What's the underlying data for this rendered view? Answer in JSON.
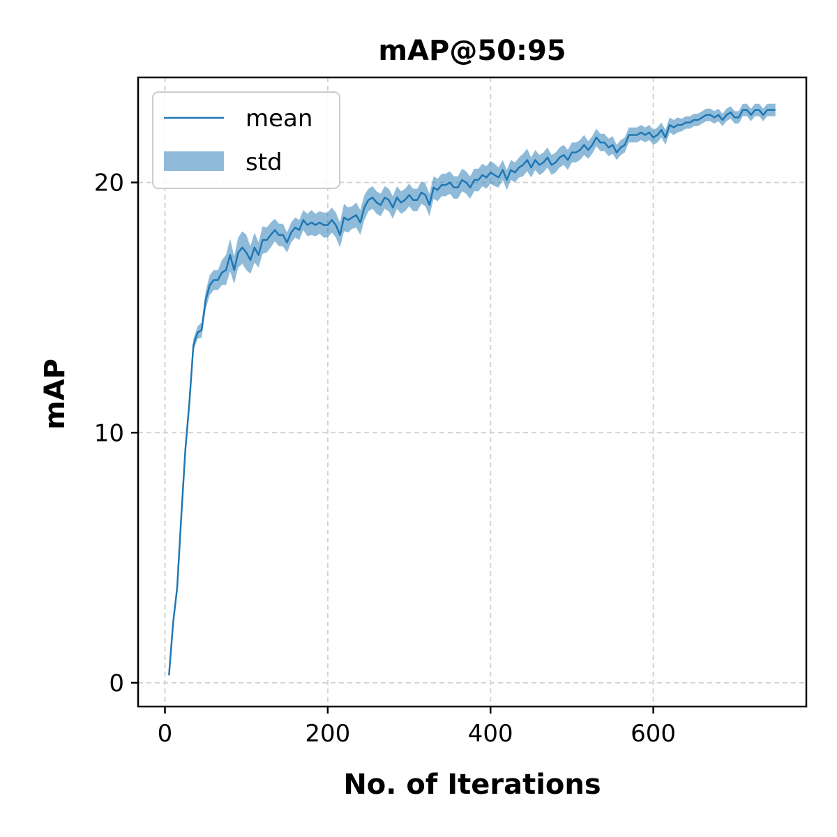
{
  "chart_data": {
    "type": "line",
    "title": "mAP@50:95",
    "xlabel": "No. of Iterations",
    "ylabel": "mAP",
    "xlim": [
      -33,
      788
    ],
    "ylim": [
      -0.95,
      24.2
    ],
    "xticks": [
      0,
      200,
      400,
      600
    ],
    "yticks": [
      0,
      10,
      20
    ],
    "grid": true,
    "legend_position": "top-left",
    "colors": {
      "line": "#1f77b4",
      "band": "#1f77b4"
    },
    "series": [
      {
        "name": "mean",
        "x": [
          5,
          10,
          15,
          20,
          25,
          30,
          35,
          40,
          45,
          50,
          55,
          60,
          65,
          70,
          75,
          80,
          85,
          90,
          95,
          100,
          105,
          110,
          115,
          120,
          125,
          130,
          135,
          140,
          145,
          150,
          155,
          160,
          165,
          170,
          175,
          180,
          185,
          190,
          195,
          200,
          205,
          210,
          215,
          220,
          225,
          230,
          235,
          240,
          245,
          250,
          255,
          260,
          265,
          270,
          275,
          280,
          285,
          290,
          295,
          300,
          305,
          310,
          315,
          320,
          325,
          330,
          335,
          340,
          345,
          350,
          355,
          360,
          365,
          370,
          375,
          380,
          385,
          390,
          395,
          400,
          405,
          410,
          415,
          420,
          425,
          430,
          435,
          440,
          445,
          450,
          455,
          460,
          465,
          470,
          475,
          480,
          485,
          490,
          495,
          500,
          505,
          510,
          515,
          520,
          525,
          530,
          535,
          540,
          545,
          550,
          555,
          560,
          565,
          570,
          575,
          580,
          585,
          590,
          595,
          600,
          605,
          610,
          615,
          620,
          625,
          630,
          635,
          640,
          645,
          650,
          655,
          660,
          665,
          670,
          675,
          680,
          685,
          690,
          695,
          700,
          705,
          710,
          715,
          720,
          725,
          730,
          735,
          740,
          745,
          750
        ],
        "y": [
          0.3,
          2.4,
          3.8,
          6.6,
          9.3,
          11.2,
          13.5,
          14.0,
          14.1,
          15.3,
          15.9,
          16.1,
          16.1,
          16.4,
          16.5,
          17.1,
          16.5,
          17.2,
          17.4,
          17.2,
          16.9,
          17.4,
          17.1,
          17.7,
          17.7,
          17.9,
          18.1,
          17.9,
          17.9,
          17.6,
          18.0,
          18.2,
          18.1,
          18.5,
          18.3,
          18.4,
          18.3,
          18.4,
          18.3,
          18.3,
          18.5,
          18.3,
          17.9,
          18.6,
          18.5,
          18.6,
          18.7,
          18.4,
          19.0,
          19.3,
          19.4,
          19.2,
          19.1,
          19.4,
          19.3,
          19.0,
          19.4,
          19.2,
          19.3,
          19.5,
          19.3,
          19.3,
          19.6,
          19.5,
          19.1,
          19.8,
          19.7,
          19.9,
          19.9,
          20.0,
          19.8,
          19.8,
          20.1,
          20.0,
          19.8,
          20.1,
          20.1,
          20.3,
          20.2,
          20.4,
          20.3,
          20.2,
          20.5,
          20.1,
          20.5,
          20.4,
          20.6,
          20.7,
          20.9,
          20.6,
          20.9,
          20.7,
          20.8,
          21.0,
          20.7,
          20.8,
          21.0,
          21.1,
          20.9,
          21.2,
          21.2,
          21.3,
          21.5,
          21.3,
          21.5,
          21.8,
          21.6,
          21.6,
          21.4,
          21.5,
          21.2,
          21.4,
          21.5,
          21.9,
          21.9,
          21.9,
          22.0,
          21.9,
          22.0,
          21.8,
          21.9,
          22.1,
          21.8,
          22.3,
          22.2,
          22.3,
          22.3,
          22.4,
          22.4,
          22.5,
          22.5,
          22.6,
          22.7,
          22.7,
          22.6,
          22.7,
          22.5,
          22.7,
          22.8,
          22.6,
          22.6,
          22.9,
          22.9,
          22.7,
          22.9,
          22.9,
          22.7,
          22.9,
          22.9,
          22.9
        ]
      },
      {
        "name": "std",
        "x": [
          5,
          10,
          15,
          20,
          25,
          30,
          35,
          40,
          45,
          50,
          55,
          60,
          65,
          70,
          75,
          80,
          85,
          90,
          95,
          100,
          105,
          110,
          115,
          120,
          125,
          130,
          135,
          140,
          145,
          150,
          155,
          160,
          165,
          170,
          175,
          180,
          185,
          190,
          195,
          200,
          205,
          210,
          215,
          220,
          225,
          230,
          235,
          240,
          245,
          250,
          255,
          260,
          265,
          270,
          275,
          280,
          285,
          290,
          295,
          300,
          305,
          310,
          315,
          320,
          325,
          330,
          335,
          340,
          345,
          350,
          355,
          360,
          365,
          370,
          375,
          380,
          385,
          390,
          395,
          400,
          405,
          410,
          415,
          420,
          425,
          430,
          435,
          440,
          445,
          450,
          455,
          460,
          465,
          470,
          475,
          480,
          485,
          490,
          495,
          500,
          505,
          510,
          515,
          520,
          525,
          530,
          535,
          540,
          545,
          550,
          555,
          560,
          565,
          570,
          575,
          580,
          585,
          590,
          595,
          600,
          605,
          610,
          615,
          620,
          625,
          630,
          635,
          640,
          645,
          650,
          655,
          660,
          665,
          670,
          675,
          680,
          685,
          690,
          695,
          700,
          705,
          710,
          715,
          720,
          725,
          730,
          735,
          740,
          745,
          750
        ],
        "y": [
          0.05,
          0.05,
          0.1,
          0.15,
          0.2,
          0.2,
          0.25,
          0.25,
          0.3,
          0.35,
          0.4,
          0.4,
          0.4,
          0.5,
          0.6,
          0.65,
          0.55,
          0.6,
          0.65,
          0.7,
          0.55,
          0.6,
          0.5,
          0.55,
          0.5,
          0.5,
          0.45,
          0.45,
          0.45,
          0.4,
          0.4,
          0.4,
          0.4,
          0.4,
          0.45,
          0.5,
          0.45,
          0.45,
          0.5,
          0.5,
          0.5,
          0.5,
          0.5,
          0.55,
          0.5,
          0.45,
          0.5,
          0.5,
          0.5,
          0.45,
          0.45,
          0.45,
          0.45,
          0.45,
          0.45,
          0.45,
          0.45,
          0.45,
          0.45,
          0.45,
          0.45,
          0.45,
          0.45,
          0.45,
          0.45,
          0.45,
          0.45,
          0.45,
          0.45,
          0.45,
          0.45,
          0.45,
          0.45,
          0.45,
          0.45,
          0.45,
          0.45,
          0.45,
          0.45,
          0.45,
          0.45,
          0.4,
          0.4,
          0.4,
          0.4,
          0.4,
          0.4,
          0.45,
          0.45,
          0.4,
          0.4,
          0.4,
          0.4,
          0.4,
          0.4,
          0.4,
          0.4,
          0.4,
          0.4,
          0.4,
          0.4,
          0.4,
          0.4,
          0.35,
          0.35,
          0.35,
          0.35,
          0.35,
          0.35,
          0.35,
          0.3,
          0.3,
          0.3,
          0.3,
          0.3,
          0.3,
          0.3,
          0.3,
          0.3,
          0.3,
          0.3,
          0.3,
          0.3,
          0.3,
          0.3,
          0.3,
          0.25,
          0.25,
          0.25,
          0.25,
          0.25,
          0.25,
          0.25,
          0.25,
          0.25,
          0.25,
          0.25,
          0.25,
          0.25,
          0.25,
          0.25,
          0.25,
          0.25,
          0.25,
          0.25,
          0.25,
          0.25,
          0.25,
          0.25,
          0.25
        ]
      }
    ]
  }
}
